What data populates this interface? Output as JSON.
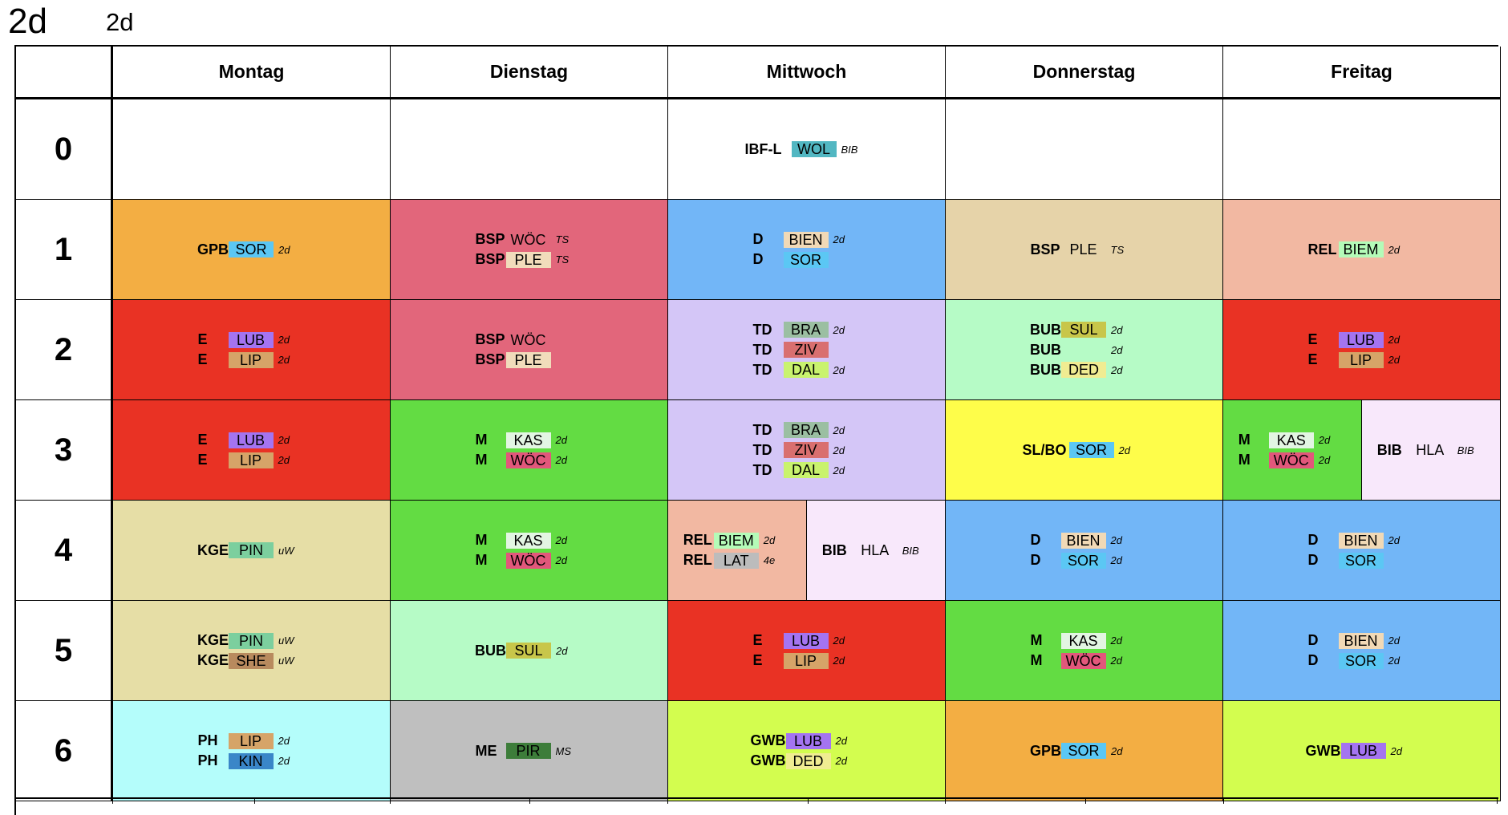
{
  "page": {
    "title": "2d",
    "subtitle": "2d"
  },
  "days": [
    "Montag",
    "Dienstag",
    "Mittwoch",
    "Donnerstag",
    "Freitag"
  ],
  "periods": [
    "0",
    "1",
    "2",
    "3",
    "4",
    "5",
    "6"
  ],
  "colors": {
    "orange": "#f3ae43",
    "rose": "#e2667b",
    "blue": "#72b6f7",
    "sand": "#e6d3a9",
    "salmon": "#f2b8a2",
    "red": "#e93224",
    "lavender": "#d4c6f7",
    "mint": "#b6fbc6",
    "green": "#63dc43",
    "yellow": "#fefd4a",
    "pink": "#f8e8fb",
    "khaki": "#e6dea6",
    "cyan": "#b4fdfb",
    "gray": "#bfbfbf",
    "lime": "#d3fd4f",
    "white": "#ffffff"
  },
  "cells": {
    "0": [
      {
        "bg": "white",
        "lines": []
      },
      {
        "bg": "white",
        "lines": []
      },
      {
        "bg": "white",
        "lines": [
          {
            "s": "IBF-L",
            "t": "WOL",
            "tc": "#52b7c2",
            "r": "BIB"
          }
        ]
      },
      {
        "bg": "white",
        "lines": []
      },
      {
        "bg": "white",
        "lines": []
      }
    ],
    "1": [
      {
        "bg": "orange",
        "lines": [
          {
            "s": "GPB",
            "t": "SOR",
            "tc": "#5bc7f4",
            "r": "2d"
          }
        ]
      },
      {
        "bg": "rose",
        "lines": [
          {
            "s": "BSP",
            "t": "WÖC",
            "tc": "",
            "r": "TS"
          },
          {
            "s": "BSP",
            "t": "PLE",
            "tc": "#f1dcbb",
            "r": "TS"
          }
        ]
      },
      {
        "bg": "blue",
        "lines": [
          {
            "s": "D",
            "t": "BIEN",
            "tc": "#f1d9b6",
            "r": "2d"
          },
          {
            "s": "D",
            "t": "SOR",
            "tc": "#5bc7f4",
            "r": ""
          }
        ]
      },
      {
        "bg": "sand",
        "lines": [
          {
            "s": "BSP",
            "t": "PLE",
            "tc": "",
            "r": "TS"
          }
        ]
      },
      {
        "bg": "salmon",
        "lines": [
          {
            "s": "REL",
            "t": "BIEM",
            "tc": "#b4fbb8",
            "r": "2d"
          }
        ]
      }
    ],
    "2": [
      {
        "bg": "red",
        "lines": [
          {
            "s": "E",
            "t": "LUB",
            "tc": "#a474f1",
            "r": "2d"
          },
          {
            "s": "E",
            "t": "LIP",
            "tc": "#d6a468",
            "r": "2d"
          }
        ]
      },
      {
        "bg": "rose",
        "lines": [
          {
            "s": "BSP",
            "t": "WÖC",
            "tc": "",
            "r": ""
          },
          {
            "s": "BSP",
            "t": "PLE",
            "tc": "#f1dcbb",
            "r": ""
          }
        ]
      },
      {
        "bg": "lavender",
        "lines": [
          {
            "s": "TD",
            "t": "BRA",
            "tc": "#9bbfa2",
            "r": "2d"
          },
          {
            "s": "TD",
            "t": "ZIV",
            "tc": "#d96f6f",
            "r": ""
          },
          {
            "s": "TD",
            "t": "DAL",
            "tc": "#c9f36e",
            "r": "2d"
          }
        ]
      },
      {
        "bg": "mint",
        "lines": [
          {
            "s": "BUB",
            "t": "SUL",
            "tc": "#c8c64a",
            "r": "2d"
          },
          {
            "s": "BUB",
            "t": "",
            "tc": "",
            "r": "2d"
          },
          {
            "s": "BUB",
            "t": "DED",
            "tc": "#f0ec92",
            "r": "2d"
          }
        ]
      },
      {
        "bg": "red",
        "lines": [
          {
            "s": "E",
            "t": "LUB",
            "tc": "#a474f1",
            "r": "2d"
          },
          {
            "s": "E",
            "t": "LIP",
            "tc": "#d6a468",
            "r": "2d"
          }
        ]
      }
    ],
    "3": [
      {
        "bg": "red",
        "lines": [
          {
            "s": "E",
            "t": "LUB",
            "tc": "#a474f1",
            "r": "2d"
          },
          {
            "s": "E",
            "t": "LIP",
            "tc": "#d6a468",
            "r": "2d"
          }
        ]
      },
      {
        "bg": "green",
        "lines": [
          {
            "s": "M",
            "t": "KAS",
            "tc": "#e3f5e3",
            "r": "2d"
          },
          {
            "s": "M",
            "t": "WÖC",
            "tc": "#e2577b",
            "r": "2d"
          }
        ]
      },
      {
        "bg": "lavender",
        "lines": [
          {
            "s": "TD",
            "t": "BRA",
            "tc": "#9bbfa2",
            "r": "2d"
          },
          {
            "s": "TD",
            "t": "ZIV",
            "tc": "#d96f6f",
            "r": "2d"
          },
          {
            "s": "TD",
            "t": "DAL",
            "tc": "#c9f36e",
            "r": "2d"
          }
        ]
      },
      {
        "bg": "yellow",
        "lines": [
          {
            "s": "SL/BO",
            "t": "SOR",
            "tc": "#5bc7f4",
            "r": "2d"
          }
        ]
      },
      {
        "split": true,
        "left": {
          "bg": "green",
          "lines": [
            {
              "s": "M",
              "t": "KAS",
              "tc": "#e3f5e3",
              "r": "2d"
            },
            {
              "s": "M",
              "t": "WÖC",
              "tc": "#e2577b",
              "r": "2d"
            }
          ]
        },
        "right": {
          "bg": "pink",
          "lines": [
            {
              "s": "BIB",
              "t": "HLA",
              "tc": "",
              "r": "BIB"
            }
          ]
        }
      }
    ],
    "4": [
      {
        "bg": "khaki",
        "lines": [
          {
            "s": "KGE",
            "t": "PIN",
            "tc": "#7ccf9e",
            "r": "uW"
          }
        ]
      },
      {
        "bg": "green",
        "lines": [
          {
            "s": "M",
            "t": "KAS",
            "tc": "#e3f5e3",
            "r": "2d"
          },
          {
            "s": "M",
            "t": "WÖC",
            "tc": "#e2577b",
            "r": "2d"
          }
        ]
      },
      {
        "split": true,
        "left": {
          "bg": "salmon",
          "lines": [
            {
              "s": "REL",
              "t": "BIEM",
              "tc": "#b4fbb8",
              "r": "2d"
            },
            {
              "s": "REL",
              "t": "LAT",
              "tc": "#bcbcbc",
              "r": "4e"
            }
          ]
        },
        "right": {
          "bg": "pink",
          "lines": [
            {
              "s": "BIB",
              "t": "HLA",
              "tc": "",
              "r": "BIB"
            }
          ]
        }
      },
      {
        "bg": "blue",
        "lines": [
          {
            "s": "D",
            "t": "BIEN",
            "tc": "#f1d9b6",
            "r": "2d"
          },
          {
            "s": "D",
            "t": "SOR",
            "tc": "#5bc7f4",
            "r": "2d"
          }
        ]
      },
      {
        "bg": "blue",
        "lines": [
          {
            "s": "D",
            "t": "BIEN",
            "tc": "#f1d9b6",
            "r": "2d"
          },
          {
            "s": "D",
            "t": "SOR",
            "tc": "#5bc7f4",
            "r": ""
          }
        ]
      }
    ],
    "5": [
      {
        "bg": "khaki",
        "lines": [
          {
            "s": "KGE",
            "t": "PIN",
            "tc": "#7ccf9e",
            "r": "uW"
          },
          {
            "s": "KGE",
            "t": "SHE",
            "tc": "#b88a5e",
            "r": "uW"
          }
        ]
      },
      {
        "bg": "mint",
        "lines": [
          {
            "s": "BUB",
            "t": "SUL",
            "tc": "#c8c64a",
            "r": "2d"
          }
        ]
      },
      {
        "bg": "red",
        "lines": [
          {
            "s": "E",
            "t": "LUB",
            "tc": "#a474f1",
            "r": "2d"
          },
          {
            "s": "E",
            "t": "LIP",
            "tc": "#d6a468",
            "r": "2d"
          }
        ]
      },
      {
        "bg": "green",
        "lines": [
          {
            "s": "M",
            "t": "KAS",
            "tc": "#e3f5e3",
            "r": "2d"
          },
          {
            "s": "M",
            "t": "WÖC",
            "tc": "#e2577b",
            "r": "2d"
          }
        ]
      },
      {
        "bg": "blue",
        "lines": [
          {
            "s": "D",
            "t": "BIEN",
            "tc": "#f1d9b6",
            "r": "2d"
          },
          {
            "s": "D",
            "t": "SOR",
            "tc": "#5bc7f4",
            "r": "2d"
          }
        ]
      }
    ],
    "6": [
      {
        "bg": "cyan",
        "lines": [
          {
            "s": "PH",
            "t": "LIP",
            "tc": "#d6a468",
            "r": "2d"
          },
          {
            "s": "PH",
            "t": "KIN",
            "tc": "#3a86c8",
            "r": "2d"
          }
        ]
      },
      {
        "bg": "gray",
        "lines": [
          {
            "s": "ME",
            "t": "PIR",
            "tc": "#3d7d3a",
            "r": "MS"
          }
        ]
      },
      {
        "bg": "lime",
        "lines": [
          {
            "s": "GWB",
            "t": "LUB",
            "tc": "#a474f1",
            "r": "2d"
          },
          {
            "s": "GWB",
            "t": "DED",
            "tc": "#f0ec92",
            "r": "2d"
          }
        ]
      },
      {
        "bg": "orange",
        "lines": [
          {
            "s": "GPB",
            "t": "SOR",
            "tc": "#5bc7f4",
            "r": "2d"
          }
        ]
      },
      {
        "bg": "lime",
        "lines": [
          {
            "s": "GWB",
            "t": "LUB",
            "tc": "#a474f1",
            "r": "2d"
          }
        ]
      }
    ]
  }
}
